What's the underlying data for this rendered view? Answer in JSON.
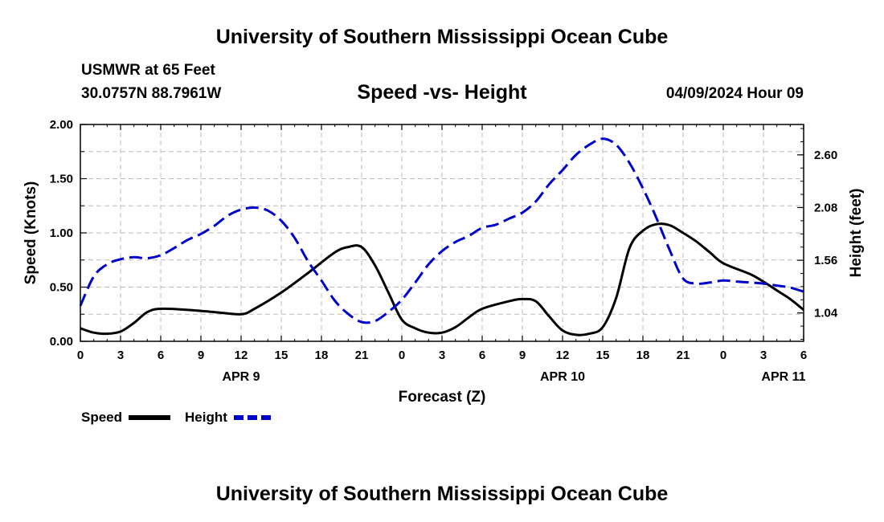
{
  "header": {
    "title": "University of Southern Mississippi Ocean Cube",
    "station": "USMWR at 65 Feet",
    "coords": "30.0757N  88.7961W",
    "subtitle": "Speed -vs- Height",
    "datetime": "04/09/2024 Hour 09",
    "footer_title": "University of Southern Mississippi Ocean Cube"
  },
  "legend": {
    "speed_label": "Speed",
    "height_label": "Height"
  },
  "chart_data": {
    "type": "line",
    "title": "Speed -vs- Height",
    "xlabel": "Forecast (Z)",
    "ylabel": "Speed (Knots)",
    "y2label": "Height (feet)",
    "xlim": [
      0,
      54
    ],
    "ylim": [
      0,
      2.0
    ],
    "y2lim": [
      0.76,
      2.9
    ],
    "grid": true,
    "x_ticks": [
      0,
      3,
      6,
      9,
      12,
      15,
      18,
      21,
      24,
      27,
      30,
      33,
      36,
      39,
      42,
      45,
      48,
      51,
      54
    ],
    "x_tick_labels": [
      "0",
      "3",
      "6",
      "9",
      "12",
      "15",
      "18",
      "21",
      "0",
      "3",
      "6",
      "9",
      "12",
      "15",
      "18",
      "21",
      "0",
      "3",
      "6"
    ],
    "y_ticks": [
      0,
      0.5,
      1.0,
      1.5,
      2.0
    ],
    "y_tick_labels": [
      "0.00",
      "0.50",
      "1.00",
      "1.50",
      "2.00"
    ],
    "y2_ticks": [
      1.04,
      1.56,
      2.08,
      2.6
    ],
    "y2_tick_labels": [
      "1.04",
      "1.56",
      "2.08",
      "2.60"
    ],
    "day_labels": [
      {
        "x": 12,
        "label": "APR 9"
      },
      {
        "x": 36,
        "label": "APR 10"
      },
      {
        "x": 52.5,
        "label": "APR 11"
      }
    ],
    "series": [
      {
        "name": "Speed",
        "axis": "left",
        "color": "#000000",
        "dash": false,
        "x": [
          0,
          1,
          2,
          3,
          4,
          5,
          6,
          8,
          10,
          12,
          13,
          15,
          17,
          19,
          20,
          21,
          22,
          23,
          24,
          25,
          26,
          27,
          28,
          29,
          30,
          32,
          33,
          34,
          35,
          36,
          37,
          38,
          39,
          40,
          41,
          42,
          43,
          44,
          45,
          46,
          47,
          48,
          50,
          51,
          52,
          53,
          54
        ],
        "values": [
          0.12,
          0.08,
          0.07,
          0.09,
          0.17,
          0.27,
          0.3,
          0.29,
          0.27,
          0.25,
          0.3,
          0.45,
          0.63,
          0.82,
          0.87,
          0.87,
          0.7,
          0.45,
          0.2,
          0.12,
          0.08,
          0.08,
          0.13,
          0.22,
          0.3,
          0.37,
          0.39,
          0.37,
          0.23,
          0.1,
          0.06,
          0.07,
          0.13,
          0.4,
          0.86,
          1.02,
          1.08,
          1.07,
          1.0,
          0.92,
          0.82,
          0.72,
          0.62,
          0.55,
          0.47,
          0.39,
          0.29
        ]
      },
      {
        "name": "Height",
        "axis": "right",
        "color": "#0000cc",
        "dash": true,
        "x": [
          0,
          1,
          2,
          3,
          4,
          5,
          6,
          7,
          8,
          9,
          10,
          11,
          12,
          13,
          14,
          15,
          16,
          17,
          18,
          19,
          20,
          21,
          22,
          23,
          24,
          25,
          26,
          27,
          28,
          29,
          30,
          31,
          32,
          33,
          34,
          35,
          36,
          37,
          38,
          39,
          40,
          41,
          42,
          43,
          44,
          45,
          46,
          47,
          48,
          49,
          50,
          51,
          52,
          53,
          54
        ],
        "values": [
          1.11,
          1.4,
          1.52,
          1.57,
          1.59,
          1.58,
          1.61,
          1.68,
          1.76,
          1.82,
          1.9,
          2.0,
          2.06,
          2.08,
          2.05,
          1.95,
          1.78,
          1.55,
          1.36,
          1.16,
          1.03,
          0.95,
          0.96,
          1.05,
          1.17,
          1.34,
          1.52,
          1.65,
          1.74,
          1.8,
          1.88,
          1.91,
          1.97,
          2.03,
          2.14,
          2.31,
          2.45,
          2.6,
          2.7,
          2.76,
          2.7,
          2.52,
          2.27,
          1.98,
          1.66,
          1.38,
          1.33,
          1.34,
          1.36,
          1.35,
          1.34,
          1.33,
          1.31,
          1.29,
          1.25
        ]
      }
    ]
  }
}
